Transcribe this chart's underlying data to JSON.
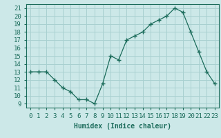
{
  "x": [
    0,
    1,
    2,
    3,
    4,
    5,
    6,
    7,
    8,
    9,
    10,
    11,
    12,
    13,
    14,
    15,
    16,
    17,
    18,
    19,
    20,
    21,
    22,
    23
  ],
  "y": [
    13,
    13,
    13,
    12,
    11,
    10.5,
    9.5,
    9.5,
    9,
    11.5,
    15,
    14.5,
    17,
    17.5,
    18,
    19,
    19.5,
    20,
    21,
    20.5,
    18,
    15.5,
    13,
    11.5
  ],
  "line_color": "#1a6b5a",
  "marker": "+",
  "bg_color": "#cce8e8",
  "grid_color": "#a8d0d0",
  "xlabel": "Humidex (Indice chaleur)",
  "ylabel_ticks": [
    9,
    10,
    11,
    12,
    13,
    14,
    15,
    16,
    17,
    18,
    19,
    20,
    21
  ],
  "xlim": [
    -0.5,
    23.5
  ],
  "ylim": [
    8.5,
    21.5
  ],
  "label_fontsize": 7,
  "tick_fontsize": 6.5
}
